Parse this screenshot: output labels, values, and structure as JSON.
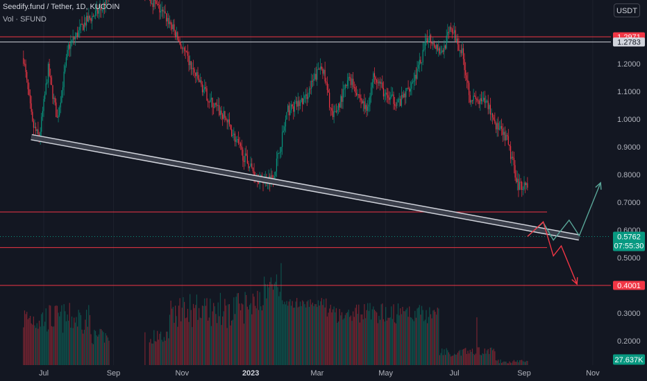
{
  "header": {
    "title": "Seedify.fund / Tether, 1D, KUCOIN",
    "volume": "Vol · SFUND",
    "currency": "USDT"
  },
  "chart_data": {
    "type": "candlestick",
    "price_axis": {
      "ticks": [
        "1.2000",
        "1.1000",
        "1.0000",
        "0.9000",
        "0.8000",
        "0.7000",
        "0.6000",
        "0.5000",
        "0.3000",
        "0.2000"
      ],
      "tick_values": [
        1.2,
        1.1,
        1.0,
        0.9,
        0.8,
        0.7,
        0.6,
        0.5,
        0.3,
        0.2
      ]
    },
    "time_axis": {
      "labels": [
        "Jul",
        "Sep",
        "Nov",
        "2023",
        "Mar",
        "May",
        "Jul",
        "Sep",
        "Nov"
      ]
    },
    "horizontal_levels": [
      {
        "value": 1.2971,
        "label": "1.2971",
        "color": "#f23645"
      },
      {
        "value": 1.2783,
        "label": "1.2783",
        "color": "#d1d4dc"
      },
      {
        "value": 0.6651,
        "color": "#f23645"
      },
      {
        "value": 0.5365,
        "color": "#f23645"
      },
      {
        "value": 0.4001,
        "label": "0.4001",
        "color": "#f23645"
      }
    ],
    "current_price": {
      "value": 0.5762,
      "label": "0.5762",
      "countdown": "07:55:30",
      "color": "#089981"
    },
    "current_volume": {
      "label": "27.637K",
      "color": "#089981"
    },
    "trendline": {
      "from_date": "2022-06-20",
      "from_price": 0.935,
      "to_date": "2023-10-20",
      "to_price": 0.573
    },
    "projection_bullish": [
      [
        "2023-09-04",
        0.5765
      ],
      [
        "2023-09-18",
        0.6275
      ],
      [
        "2023-09-27",
        0.5635
      ],
      [
        "2023-10-11",
        0.6355
      ],
      [
        "2023-10-20",
        0.5795
      ],
      [
        "2023-11-08",
        0.7705
      ]
    ],
    "projection_bearish": [
      [
        "2023-09-04",
        0.5765
      ],
      [
        "2023-09-18",
        0.6295
      ],
      [
        "2023-09-27",
        0.5065
      ],
      [
        "2023-10-04",
        0.5425
      ],
      [
        "2023-10-18",
        0.4045
      ]
    ],
    "colors": {
      "up": "#089981",
      "down": "#f23645",
      "background": "#131722",
      "grid": "#1e222d",
      "axis_text": "#b2b5be"
    }
  }
}
